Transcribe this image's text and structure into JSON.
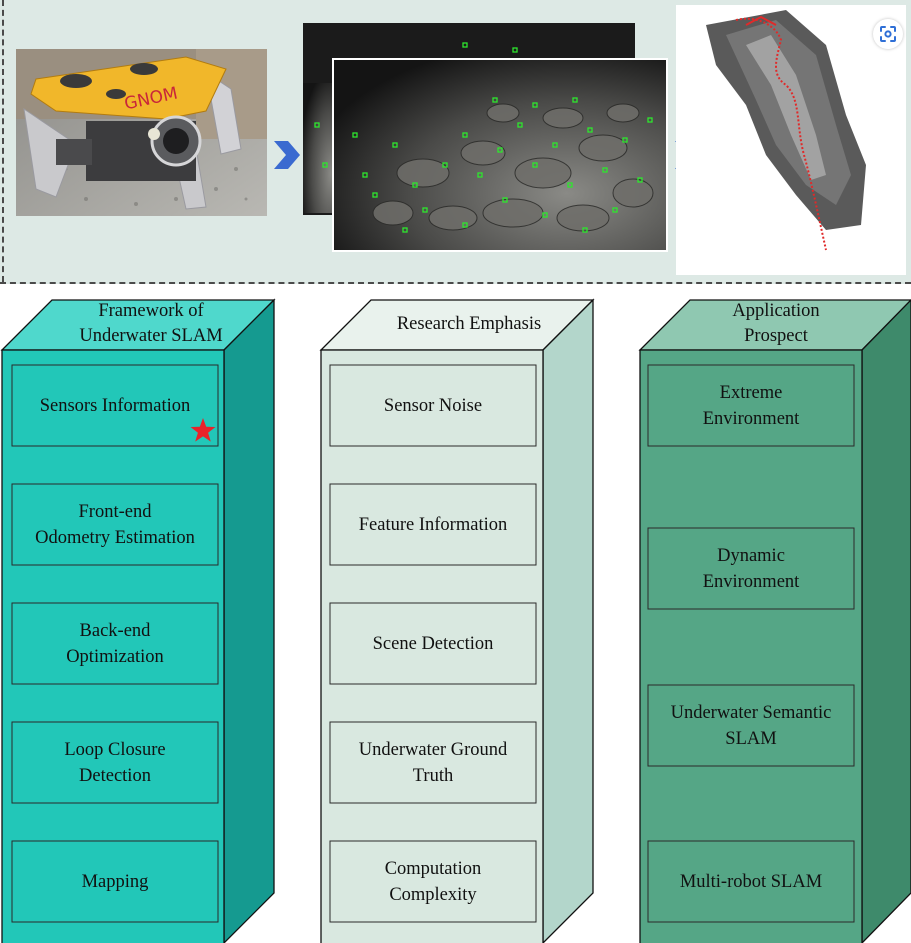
{
  "columns": [
    {
      "header": "Framework of\nUnderwater SLAM",
      "items": [
        "Sensors Information",
        "Front-end\nOdometry Estimation",
        "Back-end\nOptimization",
        "Loop Closure\nDetection",
        "Mapping"
      ]
    },
    {
      "header": "Research Emphasis",
      "items": [
        "Sensor Noise",
        "Feature Information",
        "Scene Detection",
        "Underwater Ground\nTruth",
        "Computation\nComplexity"
      ]
    },
    {
      "header": "Application\nProspect",
      "items": [
        "Extreme\nEnvironment",
        "Dynamic\nEnvironment",
        "Underwater Semantic\nSLAM",
        "Multi-robot SLAM"
      ]
    }
  ],
  "robot_label": "GNOM",
  "icons": [
    "star-icon",
    "chevron-right-icon",
    "scan-icon"
  ],
  "colors": {
    "col1_face": "#22c7b8",
    "col1_side": "#159a90",
    "col1_top": "#4fd8cc",
    "col2_face": "#d9e8e0",
    "col2_side": "#b3d6cb",
    "col2_top": "#e9f2ed",
    "col3_face": "#55a686",
    "col3_side": "#3e8a6b",
    "col3_top": "#8fc8b1",
    "arrow": "#3a6ad0",
    "star": "#e8232a",
    "top_panel": "#dde9e5"
  }
}
